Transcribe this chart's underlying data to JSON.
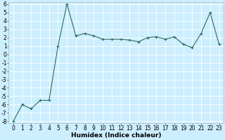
{
  "xlabel": "Humidex (Indice chaleur)",
  "x": [
    0,
    1,
    2,
    3,
    4,
    5,
    6,
    7,
    8,
    9,
    10,
    11,
    12,
    13,
    14,
    15,
    16,
    17,
    18,
    19,
    20,
    21,
    22,
    23
  ],
  "y": [
    -8,
    -6,
    -6.5,
    -5.5,
    -5.5,
    1,
    6,
    2.2,
    2.5,
    2.2,
    1.8,
    1.8,
    1.8,
    1.7,
    1.5,
    2.0,
    2.1,
    1.8,
    2.1,
    1.2,
    0.8,
    2.5,
    5,
    1.2
  ],
  "line_color": "#2e6b5e",
  "marker": "+",
  "markersize": 3,
  "linewidth": 0.8,
  "bg_color": "#cceeff",
  "grid_color": "#ffffff",
  "ylim": [
    -8,
    6
  ],
  "xlim": [
    -0.5,
    23.5
  ],
  "yticks": [
    -8,
    -7,
    -6,
    -5,
    -4,
    -3,
    -2,
    -1,
    0,
    1,
    2,
    3,
    4,
    5,
    6
  ],
  "xticks": [
    0,
    1,
    2,
    3,
    4,
    5,
    6,
    7,
    8,
    9,
    10,
    11,
    12,
    13,
    14,
    15,
    16,
    17,
    18,
    19,
    20,
    21,
    22,
    23
  ],
  "tick_fontsize": 5.5,
  "xlabel_fontsize": 6.5
}
